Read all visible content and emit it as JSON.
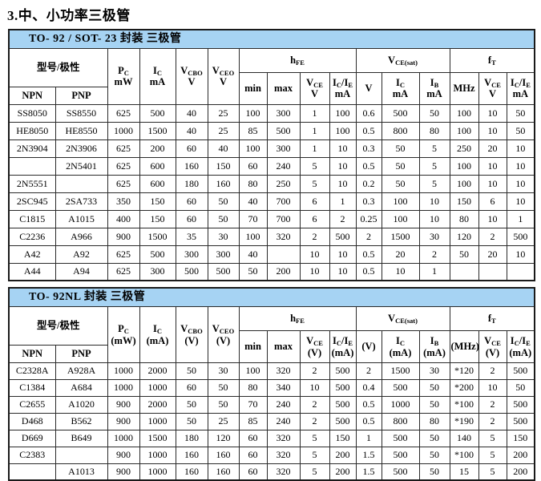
{
  "page_title": "3.中、小功率三极管",
  "colors": {
    "accent": "#a6d3f3",
    "grid": "#2a2a2a"
  },
  "t1": {
    "title": "TO- 92 / SOT- 23  封装  三极管",
    "h": {
      "model": "型号/极性",
      "npn": "NPN",
      "pnp": "PNP",
      "pc": {
        "m": "P",
        "s": "C",
        "u": "mW"
      },
      "ic": {
        "m": "I",
        "s": "C",
        "u": "mA"
      },
      "vcbo": {
        "m": "V",
        "s": "CBO",
        "u": "V"
      },
      "vceo": {
        "m": "V",
        "s": "CEO",
        "u": "V"
      },
      "hfe": {
        "m": "h",
        "s": "FE"
      },
      "min": "min",
      "max": "max",
      "hfe_vce": {
        "m": "V",
        "s": "CE",
        "u": "V"
      },
      "hfe_icie": {
        "m1": "I",
        "s1": "C",
        "sep": "/",
        "m2": "I",
        "s2": "E",
        "u": "mA"
      },
      "vcesat": {
        "m": "V",
        "s": "CE(sat)"
      },
      "sat_v": "V",
      "sat_ic": {
        "m": "I",
        "s": "C",
        "u": "mA"
      },
      "sat_ib": {
        "m": "I",
        "s": "B",
        "u": "mA"
      },
      "ft": {
        "m": "f",
        "s": "T"
      },
      "ft_mhz": "MHz",
      "ft_vce": {
        "m": "V",
        "s": "CE",
        "u": "V"
      },
      "ft_icie": {
        "m1": "I",
        "s1": "C",
        "sep": "/",
        "m2": "I",
        "s2": "E",
        "u": "mA"
      }
    },
    "rows": [
      [
        "SS8050",
        "SS8550",
        "625",
        "500",
        "40",
        "25",
        "100",
        "300",
        "1",
        "100",
        "0.6",
        "500",
        "50",
        "100",
        "10",
        "50"
      ],
      [
        "HE8050",
        "HE8550",
        "1000",
        "1500",
        "40",
        "25",
        "85",
        "500",
        "1",
        "100",
        "0.5",
        "800",
        "80",
        "100",
        "10",
        "50"
      ],
      [
        "2N3904",
        "2N3906",
        "625",
        "200",
        "60",
        "40",
        "100",
        "300",
        "1",
        "10",
        "0.3",
        "50",
        "5",
        "250",
        "20",
        "10"
      ],
      [
        "",
        "2N5401",
        "625",
        "600",
        "160",
        "150",
        "60",
        "240",
        "5",
        "10",
        "0.5",
        "50",
        "5",
        "100",
        "10",
        "10"
      ],
      [
        "2N5551",
        "",
        "625",
        "600",
        "180",
        "160",
        "80",
        "250",
        "5",
        "10",
        "0.2",
        "50",
        "5",
        "100",
        "10",
        "10"
      ],
      [
        "2SC945",
        "2SA733",
        "350",
        "150",
        "60",
        "50",
        "40",
        "700",
        "6",
        "1",
        "0.3",
        "100",
        "10",
        "150",
        "6",
        "10"
      ],
      [
        "C1815",
        "A1015",
        "400",
        "150",
        "60",
        "50",
        "70",
        "700",
        "6",
        "2",
        "0.25",
        "100",
        "10",
        "80",
        "10",
        "1"
      ],
      [
        "C2236",
        "A966",
        "900",
        "1500",
        "35",
        "30",
        "100",
        "320",
        "2",
        "500",
        "2",
        "1500",
        "30",
        "120",
        "2",
        "500"
      ],
      [
        "A42",
        "A92",
        "625",
        "500",
        "300",
        "300",
        "40",
        "",
        "10",
        "10",
        "0.5",
        "20",
        "2",
        "50",
        "20",
        "10"
      ],
      [
        "A44",
        "A94",
        "625",
        "300",
        "500",
        "500",
        "50",
        "200",
        "10",
        "10",
        "0.5",
        "10",
        "1",
        "",
        "",
        ""
      ]
    ]
  },
  "t2": {
    "title": "TO- 92NL  封装  三极管",
    "h": {
      "model": "型号/极性",
      "npn": "NPN",
      "pnp": "PNP",
      "pc": {
        "m": "P",
        "s": "C",
        "u": "(mW)"
      },
      "ic": {
        "m": "I",
        "s": "C",
        "u": "(mA)"
      },
      "vcbo": {
        "m": "V",
        "s": "CBO",
        "u": "(V)"
      },
      "vceo": {
        "m": "V",
        "s": "CEO",
        "u": "(V)"
      },
      "hfe": {
        "m": "h",
        "s": "FE"
      },
      "min": "min",
      "max": "max",
      "hfe_vce": {
        "m": "V",
        "s": "CE",
        "u": "(V)"
      },
      "hfe_icie": {
        "m1": "I",
        "s1": "C",
        "sep": "/",
        "m2": "I",
        "s2": "E",
        "u": "(mA)"
      },
      "vcesat": {
        "m": "V",
        "s": "CE(sat)"
      },
      "sat_v": "(V)",
      "sat_ic": {
        "m": "I",
        "s": "C",
        "u": "(mA)"
      },
      "sat_ib": {
        "m": "I",
        "s": "B",
        "u": "(mA)"
      },
      "ft": {
        "m": "f",
        "s": "T"
      },
      "ft_mhz": "(MHz)",
      "ft_vce": {
        "m": "V",
        "s": "CE",
        "u": "(V)"
      },
      "ft_icie": {
        "m1": "I",
        "s1": "C",
        "sep": "/",
        "m2": "I",
        "s2": "E",
        "u": "(mA)"
      }
    },
    "rows": [
      [
        "C2328A",
        "A928A",
        "1000",
        "2000",
        "50",
        "30",
        "100",
        "320",
        "2",
        "500",
        "2",
        "1500",
        "30",
        "*120",
        "2",
        "500"
      ],
      [
        "C1384",
        "A684",
        "1000",
        "1000",
        "60",
        "50",
        "80",
        "340",
        "10",
        "500",
        "0.4",
        "500",
        "50",
        "*200",
        "10",
        "50"
      ],
      [
        "C2655",
        "A1020",
        "900",
        "2000",
        "50",
        "50",
        "70",
        "240",
        "2",
        "500",
        "0.5",
        "1000",
        "50",
        "*100",
        "2",
        "500"
      ],
      [
        "D468",
        "B562",
        "900",
        "1000",
        "50",
        "25",
        "85",
        "240",
        "2",
        "500",
        "0.5",
        "800",
        "80",
        "*190",
        "2",
        "500"
      ],
      [
        "D669",
        "B649",
        "1000",
        "1500",
        "180",
        "120",
        "60",
        "320",
        "5",
        "150",
        "1",
        "500",
        "50",
        "140",
        "5",
        "150"
      ],
      [
        "C2383",
        "",
        "900",
        "1000",
        "160",
        "160",
        "60",
        "320",
        "5",
        "200",
        "1.5",
        "500",
        "50",
        "*100",
        "5",
        "200"
      ],
      [
        "",
        "A1013",
        "900",
        "1000",
        "160",
        "160",
        "60",
        "320",
        "5",
        "200",
        "1.5",
        "500",
        "50",
        "15",
        "5",
        "200"
      ]
    ]
  }
}
